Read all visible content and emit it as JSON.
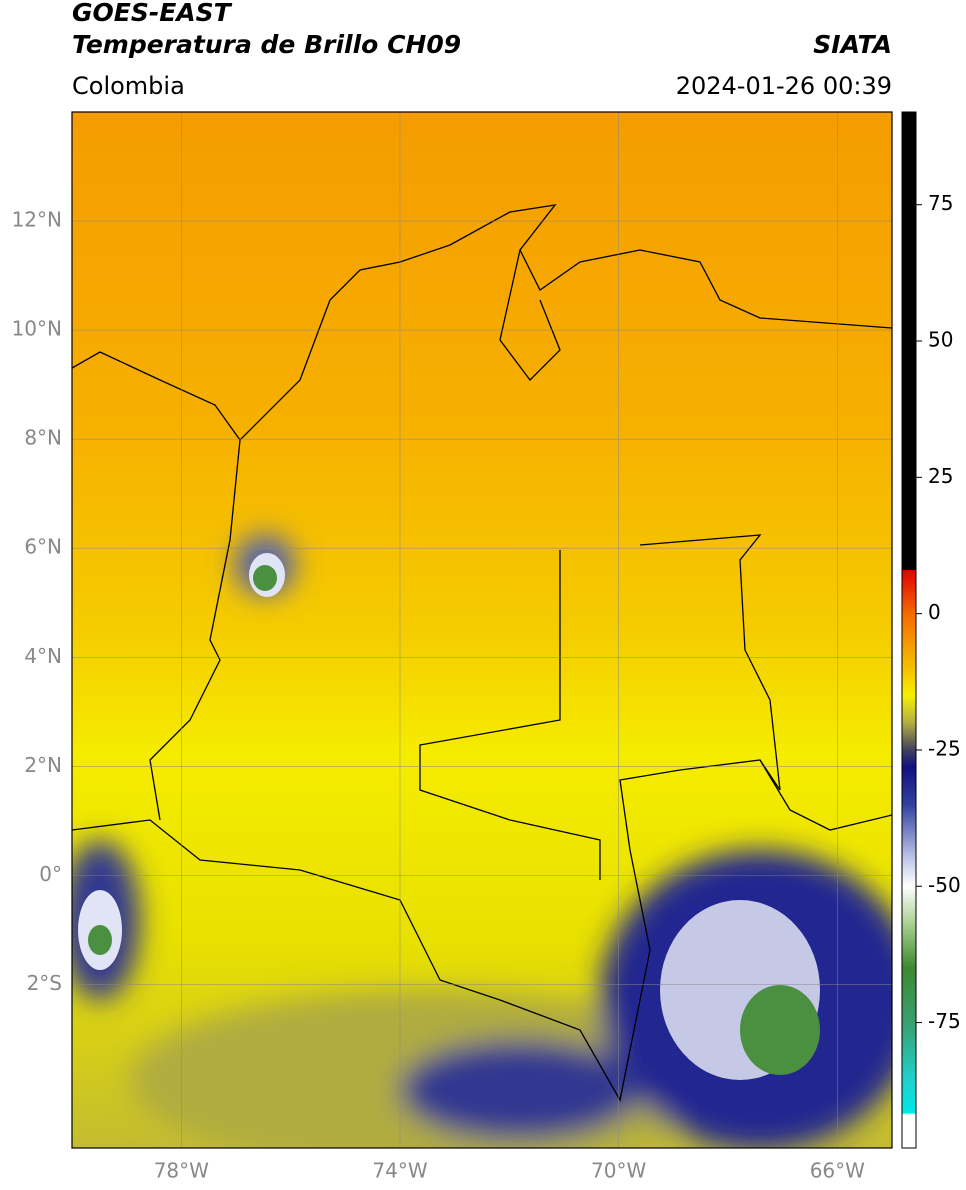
{
  "header": {
    "title": "GOES-EAST",
    "subtitle": "Temperatura de Brillo CH09",
    "source": "SIATA",
    "region": "Colombia",
    "datetime": "2024-01-26 00:39"
  },
  "map": {
    "xlim": [
      -80,
      -65
    ],
    "ylim": [
      -5,
      14
    ],
    "xticks": [
      {
        "value": -78,
        "label": "78°W"
      },
      {
        "value": -74,
        "label": "74°W"
      },
      {
        "value": -70,
        "label": "70°W"
      },
      {
        "value": -66,
        "label": "66°W"
      }
    ],
    "yticks": [
      {
        "value": 12,
        "label": "12°N"
      },
      {
        "value": 10,
        "label": "10°N"
      },
      {
        "value": 8,
        "label": "8°N"
      },
      {
        "value": 6,
        "label": "6°N"
      },
      {
        "value": 4,
        "label": "4°N"
      },
      {
        "value": 2,
        "label": "2°N"
      },
      {
        "value": 0,
        "label": "0°"
      },
      {
        "value": -2,
        "label": "2°S"
      }
    ],
    "grid": true
  },
  "colorbar": {
    "lim": [
      -98,
      92
    ],
    "ticks": [
      75,
      50,
      25,
      0,
      -25,
      -50,
      -75
    ]
  }
}
